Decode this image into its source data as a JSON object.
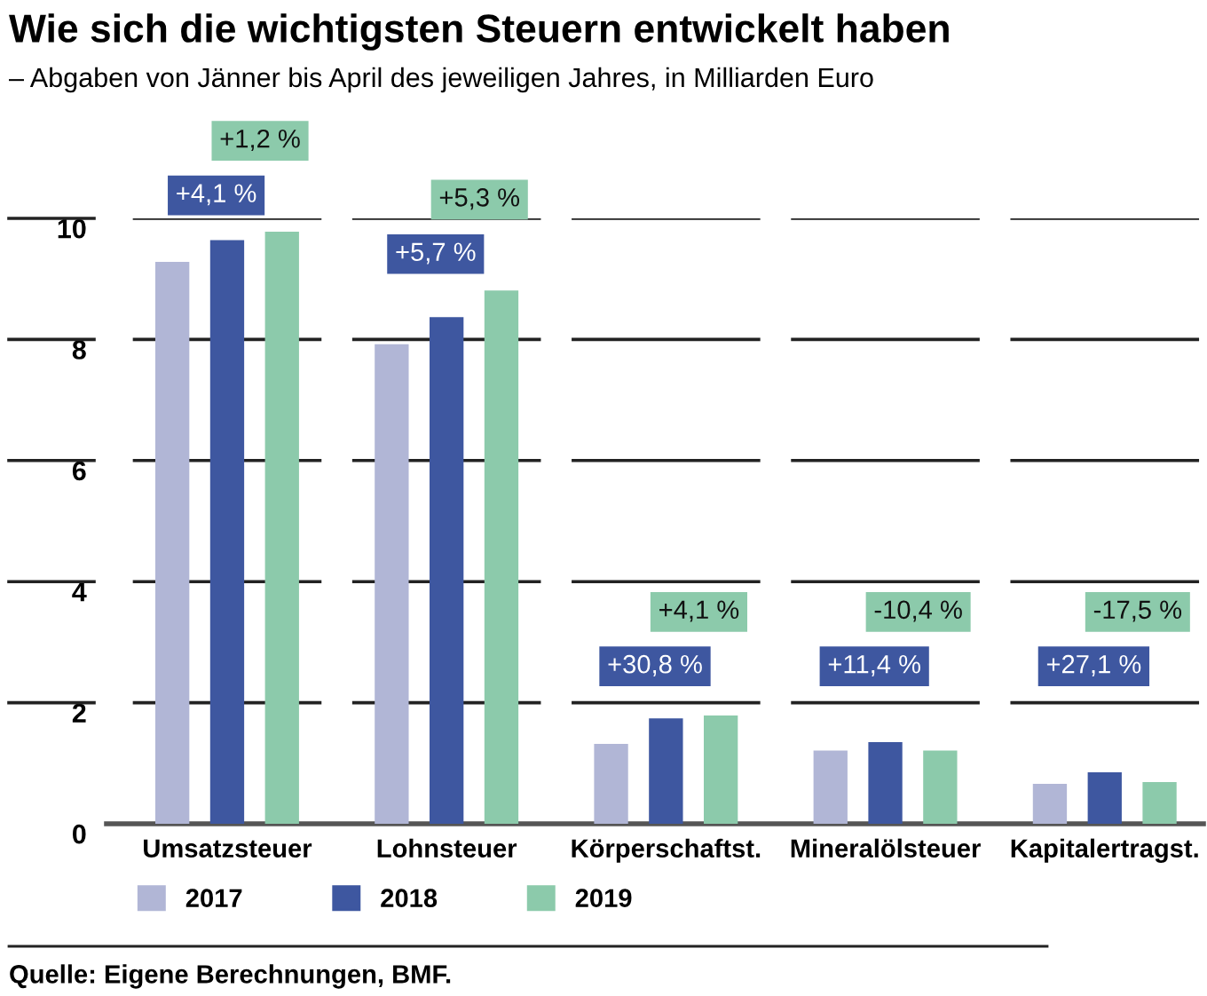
{
  "chart_data": {
    "type": "bar",
    "title": "Wie sich die wichtigsten Steuern entwickelt haben",
    "subtitle": "– Abgaben von Jänner bis April des jeweiligen Jahres, in Milliarden Euro",
    "categories": [
      "Umsatzsteuer",
      "Lohnsteuer",
      "Körperschaftst.",
      "Mineralölsteuer",
      "Kapitalertragst."
    ],
    "series": [
      {
        "name": "2017",
        "color": "#b1b6d6",
        "values": [
          9.28,
          7.92,
          1.32,
          1.21,
          0.66
        ]
      },
      {
        "name": "2018",
        "color": "#3e57a0",
        "values": [
          9.64,
          8.37,
          1.74,
          1.35,
          0.85
        ]
      },
      {
        "name": "2019",
        "color": "#8ccaab",
        "values": [
          9.78,
          8.81,
          1.79,
          1.21,
          0.69
        ]
      }
    ],
    "ylim": [
      0,
      10
    ],
    "yticks": [
      0,
      2,
      4,
      6,
      8,
      10
    ],
    "grid": "y",
    "legend": "bottom left",
    "annotations": [
      "+4,1 %",
      "+1,2 %",
      "+5,7 %",
      "+5,3 %",
      "+30,8 %",
      "+4,1 %",
      "+11,4 %",
      "-10,4 %",
      "+27,1 %",
      "-17,5 %",
      "Quelle: Eigene Berechnungen, BMF."
    ]
  }
}
